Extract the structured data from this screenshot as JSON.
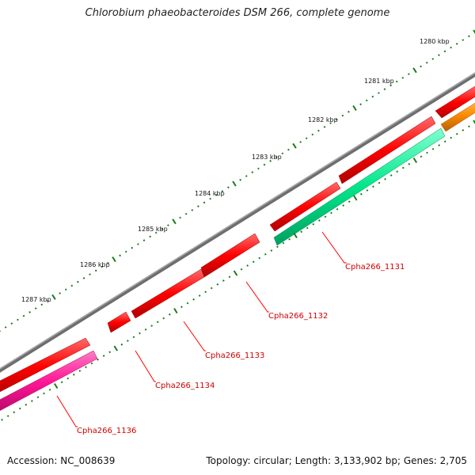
{
  "title": "Chlorobium phaeobacteroides DSM 266, complete genome",
  "footer": {
    "accession": "Accession: NC_008639",
    "summary": "Topology: circular; Length: 3,133,902 bp; Genes: 2,705"
  },
  "ticks": [
    {
      "label": "1280 kbp"
    },
    {
      "label": "1281 kbp"
    },
    {
      "label": "1282 kbp"
    },
    {
      "label": "1283 kbp"
    },
    {
      "label": "1284 kbp"
    },
    {
      "label": "1285 kbp"
    },
    {
      "label": "1286 kbp"
    },
    {
      "label": "1287 kbp"
    }
  ],
  "genes": [
    {
      "label": "Cpha266_1131",
      "color": "#00e68a"
    },
    {
      "label": "Cpha266_1132",
      "color": "#ff0000"
    },
    {
      "label": "Cpha266_1133",
      "color": "#ff0000"
    },
    {
      "label": "Cpha266_1134",
      "color": "#ff0000"
    },
    {
      "label": "Cpha266_1136",
      "color": "#ff1493"
    }
  ],
  "colors": {
    "backbone": "#7a7a7a",
    "tick": "#1a7a1a",
    "label_line": "#ff0000",
    "orange_feature": "#ff8c00"
  }
}
